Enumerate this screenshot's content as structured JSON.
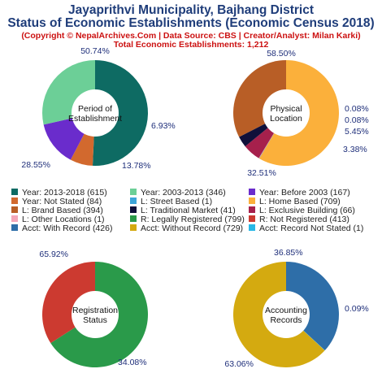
{
  "header": {
    "title_line1": "Jayaprithvi Municipality, Bajhang District",
    "title_line2": "Status of Economic Establishments (Economic Census 2018)",
    "copyright": "(Copyright © NepalArchives.Com | Data Source: CBS | Creator/Analyst: Milan Karki)",
    "total": "Total Economic Establishments: 1,212"
  },
  "chart_data": [
    {
      "type": "pie",
      "center_label": [
        "Period of",
        "Establishment"
      ],
      "slices": [
        {
          "label": "Year: 2013-2018",
          "value": 615,
          "pct": "50.74%",
          "color": "#0e6b63"
        },
        {
          "label": "Year: Not Stated",
          "value": 84,
          "pct": "6.93%",
          "color": "#d2692e"
        },
        {
          "label": "Year: Before 2003",
          "value": 167,
          "pct": "13.78%",
          "color": "#6a2ccc"
        },
        {
          "label": "Year: 2003-2013",
          "value": 346,
          "pct": "28.55%",
          "color": "#6ccf97"
        }
      ]
    },
    {
      "type": "pie",
      "center_label": [
        "Physical",
        "Location"
      ],
      "slices": [
        {
          "label": "L: Home Based",
          "value": 709,
          "pct": "58.50%",
          "color": "#fbb03b"
        },
        {
          "label": "L: Street Based",
          "value": 1,
          "pct": "0.08%",
          "color": "#3da5d9"
        },
        {
          "label": "L: Other Locations",
          "value": 1,
          "pct": "0.08%",
          "color": "#f4a7b9"
        },
        {
          "label": "L: Exclusive Building",
          "value": 66,
          "pct": "5.45%",
          "color": "#a6204c"
        },
        {
          "label": "L: Traditional Market",
          "value": 41,
          "pct": "3.38%",
          "color": "#10103a"
        },
        {
          "label": "L: Brand Based",
          "value": 394,
          "pct": "32.51%",
          "color": "#b85e26"
        }
      ]
    },
    {
      "type": "pie",
      "center_label": [
        "Registration",
        "Status"
      ],
      "slices": [
        {
          "label": "R: Legally Registered",
          "value": 799,
          "pct": "65.92%",
          "color": "#2a9a4a"
        },
        {
          "label": "R: Not Registered",
          "value": 413,
          "pct": "34.08%",
          "color": "#cc3a30"
        }
      ]
    },
    {
      "type": "pie",
      "center_label": [
        "Accounting",
        "Records"
      ],
      "slices": [
        {
          "label": "Acct: With Record",
          "value": 426,
          "pct": "36.85%",
          "color": "#2e6ea8"
        },
        {
          "label": "Acct: Record Not Stated",
          "value": 1,
          "pct": "0.09%",
          "color": "#29b8e6"
        },
        {
          "label": "Acct: Without Record",
          "value": 729,
          "pct": "63.06%",
          "color": "#d4aa10"
        }
      ]
    }
  ],
  "legend": [
    {
      "text": "Year: 2013-2018 (615)",
      "color": "#0e6b63"
    },
    {
      "text": "Year: 2003-2013 (346)",
      "color": "#6ccf97"
    },
    {
      "text": "Year: Before 2003 (167)",
      "color": "#6a2ccc"
    },
    {
      "text": "Year: Not Stated (84)",
      "color": "#d2692e"
    },
    {
      "text": "L: Street Based (1)",
      "color": "#3da5d9"
    },
    {
      "text": "L: Home Based (709)",
      "color": "#fbb03b"
    },
    {
      "text": "L: Brand Based (394)",
      "color": "#b85e26"
    },
    {
      "text": "L: Traditional Market (41)",
      "color": "#10103a"
    },
    {
      "text": "L: Exclusive Building (66)",
      "color": "#a6204c"
    },
    {
      "text": "L: Other Locations (1)",
      "color": "#f4a7b9"
    },
    {
      "text": "R: Legally Registered (799)",
      "color": "#2a9a4a"
    },
    {
      "text": "R: Not Registered (413)",
      "color": "#cc3a30"
    },
    {
      "text": "Acct: With Record (426)",
      "color": "#2e6ea8"
    },
    {
      "text": "Acct: Without Record (729)",
      "color": "#d4aa10"
    },
    {
      "text": "Acct: Record Not Stated (1)",
      "color": "#29b8e6"
    }
  ]
}
